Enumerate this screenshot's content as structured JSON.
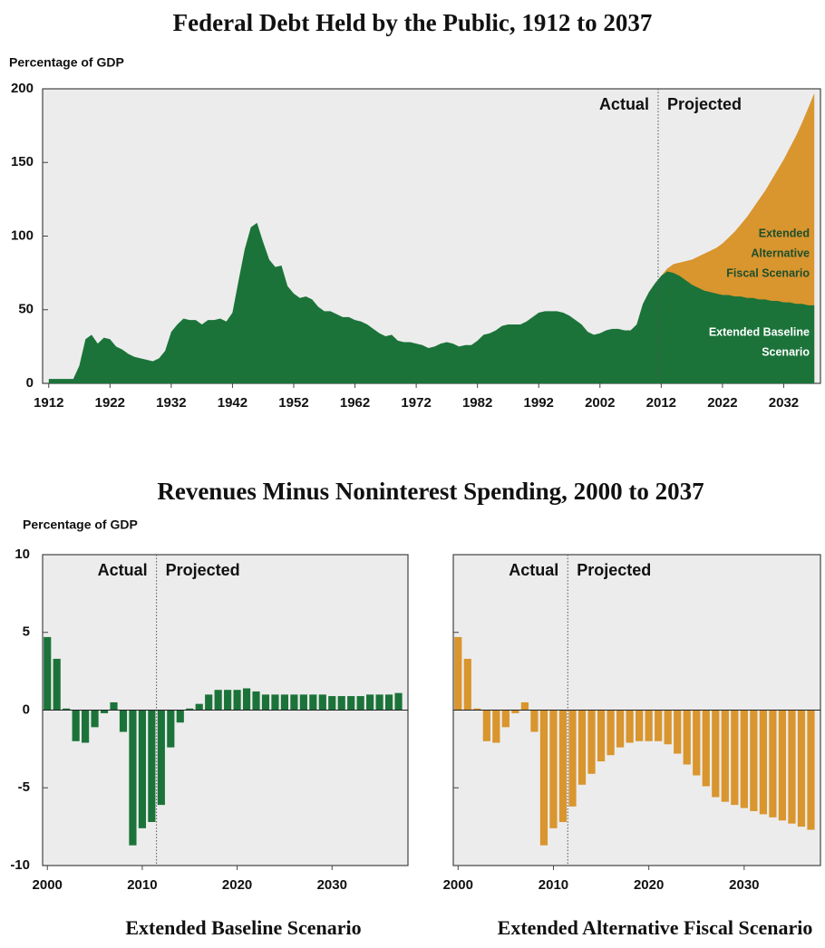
{
  "group_title": "Revenues Minus Noninterest Spending, 2000 to 2037",
  "group_ylabel": "Percentage of GDP",
  "chart_data": [
    {
      "type": "area",
      "title": "Federal Debt Held by the Public, 1912 to 2037",
      "ylabel": "Percentage of GDP",
      "actual_label": "Actual",
      "projected_label": "Projected",
      "divider_x": 2011.5,
      "xlim": [
        1911,
        2038
      ],
      "xticks": [
        1912,
        1922,
        1932,
        1942,
        1952,
        1962,
        1972,
        1982,
        1992,
        2002,
        2012,
        2022,
        2032
      ],
      "ylim": [
        0,
        200
      ],
      "yticks": [
        0,
        50,
        100,
        150,
        200
      ],
      "series": [
        {
          "name": [
            "Extended Baseline",
            "Scenario"
          ],
          "color": "#1b7339",
          "x": [
            1912,
            1913,
            1914,
            1915,
            1916,
            1917,
            1918,
            1919,
            1920,
            1921,
            1922,
            1923,
            1924,
            1925,
            1926,
            1927,
            1928,
            1929,
            1930,
            1931,
            1932,
            1933,
            1934,
            1935,
            1936,
            1937,
            1938,
            1939,
            1940,
            1941,
            1942,
            1943,
            1944,
            1945,
            1946,
            1947,
            1948,
            1949,
            1950,
            1951,
            1952,
            1953,
            1954,
            1955,
            1956,
            1957,
            1958,
            1959,
            1960,
            1961,
            1962,
            1963,
            1964,
            1965,
            1966,
            1967,
            1968,
            1969,
            1970,
            1971,
            1972,
            1973,
            1974,
            1975,
            1976,
            1977,
            1978,
            1979,
            1980,
            1981,
            1982,
            1983,
            1984,
            1985,
            1986,
            1987,
            1988,
            1989,
            1990,
            1991,
            1992,
            1993,
            1994,
            1995,
            1996,
            1997,
            1998,
            1999,
            2000,
            2001,
            2002,
            2003,
            2004,
            2005,
            2006,
            2007,
            2008,
            2009,
            2010,
            2011,
            2012,
            2013,
            2014,
            2015,
            2016,
            2017,
            2018,
            2019,
            2020,
            2021,
            2022,
            2023,
            2024,
            2025,
            2026,
            2027,
            2028,
            2029,
            2030,
            2031,
            2032,
            2033,
            2034,
            2035,
            2036,
            2037
          ],
          "values": [
            3,
            3,
            3,
            3,
            3,
            12,
            30,
            33,
            27,
            31,
            30,
            25,
            23,
            20,
            18,
            17,
            16,
            15,
            17,
            22,
            35,
            40,
            44,
            43,
            43,
            40,
            43,
            43,
            44,
            42,
            48,
            70,
            91,
            106,
            109,
            96,
            84,
            79,
            80,
            66,
            61,
            58,
            59,
            57,
            52,
            49,
            49,
            47,
            45,
            45,
            43,
            42,
            40,
            37,
            34,
            32,
            33,
            29,
            28,
            28,
            27,
            26,
            24,
            25,
            27,
            28,
            27,
            25,
            26,
            26,
            29,
            33,
            34,
            36,
            39,
            40,
            40,
            40,
            42,
            45,
            48,
            49,
            49,
            49,
            48,
            46,
            43,
            40,
            35,
            33,
            34,
            36,
            37,
            37,
            36,
            36,
            40,
            54,
            62,
            68,
            73,
            76,
            75,
            73,
            70,
            67,
            65,
            63,
            62,
            61,
            60,
            60,
            59,
            59,
            58,
            58,
            57,
            57,
            56,
            56,
            55,
            55,
            54,
            54,
            53,
            53
          ]
        },
        {
          "name": [
            "Extended",
            "Alternative",
            "Fiscal Scenario"
          ],
          "color": "#d9952e",
          "x": [
            2012,
            2013,
            2014,
            2015,
            2016,
            2017,
            2018,
            2019,
            2020,
            2021,
            2022,
            2023,
            2024,
            2025,
            2026,
            2027,
            2028,
            2029,
            2030,
            2031,
            2032,
            2033,
            2034,
            2035,
            2036,
            2037
          ],
          "values": [
            73,
            78,
            81,
            82,
            83,
            84,
            86,
            88,
            90,
            92,
            95,
            99,
            103,
            108,
            113,
            119,
            125,
            131,
            138,
            145,
            152,
            160,
            168,
            177,
            187,
            197
          ]
        }
      ]
    },
    {
      "type": "bar",
      "title": "Extended Baseline Scenario",
      "color": "#1b7339",
      "actual_label": "Actual",
      "projected_label": "Projected",
      "divider_x": 2011.5,
      "xlim": [
        1999.5,
        2038
      ],
      "xticks": [
        2000,
        2010,
        2020,
        2030
      ],
      "ylim": [
        -10,
        10
      ],
      "yticks": [
        -10,
        -5,
        0,
        5,
        10
      ],
      "ytick_labels": true,
      "x": [
        2000,
        2001,
        2002,
        2003,
        2004,
        2005,
        2006,
        2007,
        2008,
        2009,
        2010,
        2011,
        2012,
        2013,
        2014,
        2015,
        2016,
        2017,
        2018,
        2019,
        2020,
        2021,
        2022,
        2023,
        2024,
        2025,
        2026,
        2027,
        2028,
        2029,
        2030,
        2031,
        2032,
        2033,
        2034,
        2035,
        2036,
        2037
      ],
      "values": [
        4.7,
        3.3,
        0.1,
        -2.0,
        -2.1,
        -1.1,
        -0.2,
        0.5,
        -1.4,
        -8.7,
        -7.6,
        -7.2,
        -6.1,
        -2.4,
        -0.8,
        0.1,
        0.4,
        1.0,
        1.3,
        1.3,
        1.3,
        1.4,
        1.2,
        1.0,
        1.0,
        1.0,
        1.0,
        1.0,
        1.0,
        1.0,
        0.9,
        0.9,
        0.9,
        0.9,
        1.0,
        1.0,
        1.0,
        1.1
      ]
    },
    {
      "type": "bar",
      "title": "Extended Alternative Fiscal Scenario",
      "color": "#d9952e",
      "actual_label": "Actual",
      "projected_label": "Projected",
      "divider_x": 2011.5,
      "xlim": [
        1999.5,
        2038
      ],
      "xticks": [
        2000,
        2010,
        2020,
        2030
      ],
      "ylim": [
        -10,
        10
      ],
      "yticks": [
        -10,
        -5,
        0,
        5,
        10
      ],
      "ytick_labels": false,
      "x": [
        2000,
        2001,
        2002,
        2003,
        2004,
        2005,
        2006,
        2007,
        2008,
        2009,
        2010,
        2011,
        2012,
        2013,
        2014,
        2015,
        2016,
        2017,
        2018,
        2019,
        2020,
        2021,
        2022,
        2023,
        2024,
        2025,
        2026,
        2027,
        2028,
        2029,
        2030,
        2031,
        2032,
        2033,
        2034,
        2035,
        2036,
        2037
      ],
      "values": [
        4.7,
        3.3,
        0.1,
        -2.0,
        -2.1,
        -1.1,
        -0.2,
        0.5,
        -1.4,
        -8.7,
        -7.6,
        -7.2,
        -6.2,
        -4.8,
        -4.1,
        -3.3,
        -2.9,
        -2.4,
        -2.1,
        -2.0,
        -2.0,
        -2.0,
        -2.2,
        -2.8,
        -3.5,
        -4.2,
        -4.9,
        -5.6,
        -5.9,
        -6.1,
        -6.3,
        -6.5,
        -6.7,
        -6.9,
        -7.1,
        -7.3,
        -7.5,
        -7.7
      ]
    }
  ]
}
